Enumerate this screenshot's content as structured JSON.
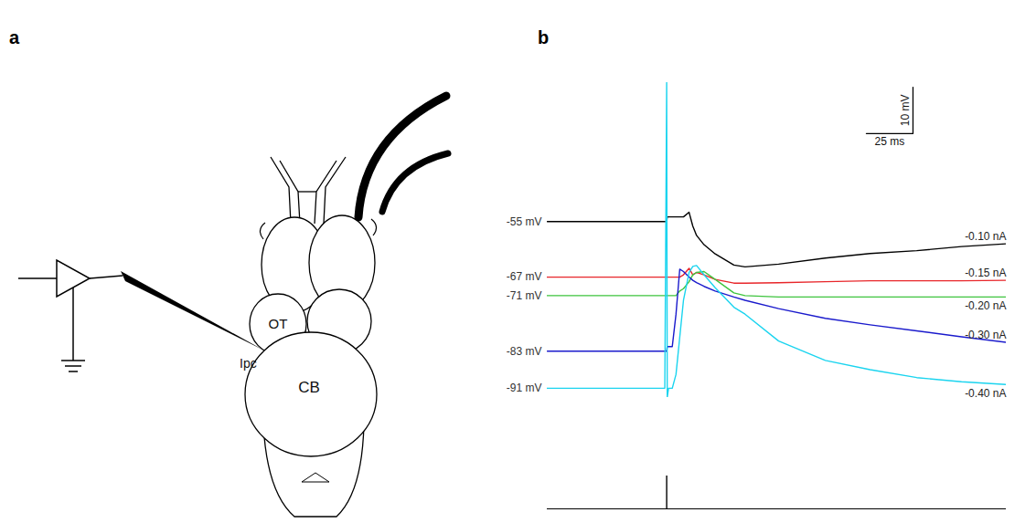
{
  "panel_a": {
    "panel_label": "a",
    "labels": {
      "optic_tectum": "OT",
      "nucleus": "Ipc",
      "cerebellum": "CB"
    }
  },
  "chart_data": {
    "type": "line",
    "panel_label": "b",
    "tick_labels": false,
    "x": [
      -64,
      -1,
      0,
      0.3,
      1,
      3,
      5,
      7,
      9,
      12,
      14,
      16,
      20,
      26,
      36,
      42,
      60,
      85,
      109,
      134,
      158,
      182
    ],
    "series": [
      {
        "name": "-0.10 nA",
        "potential_label": "-55 mV",
        "color": "#000000",
        "values": [
          -55,
          -55,
          -55,
          -54,
          -54,
          -54,
          -54,
          -54,
          -54,
          -53,
          -56,
          -58,
          -60,
          -62,
          -64.4,
          -64.8,
          -64.2,
          -62.9,
          -61.9,
          -61.3,
          -60.4,
          -59.8
        ]
      },
      {
        "name": "-0.15 nA",
        "potential_label": "-67 mV",
        "color": "#e8262a",
        "values": [
          -67,
          -67,
          -67,
          -67,
          -67,
          -67,
          -67,
          -67,
          -66.5,
          -65.1,
          -66.5,
          -66,
          -66.5,
          -67.5,
          -68.3,
          -68.3,
          -68.2,
          -68,
          -67.8,
          -67.8,
          -67.8,
          -67.7
        ]
      },
      {
        "name": "-0.20 nA",
        "potential_label": "-71 mV",
        "color": "#3ec43e",
        "values": [
          -71,
          -71,
          -71,
          -71,
          -71,
          -71,
          -71,
          -70,
          -69.5,
          -68,
          -66.5,
          -66,
          -65.8,
          -67.5,
          -70.4,
          -71,
          -71.3,
          -71.3,
          -71.3,
          -71.3,
          -71.3,
          -71.3
        ]
      },
      {
        "name": "-0.30 nA",
        "potential_label": "-83 mV",
        "color": "#1a1acc",
        "values": [
          -83,
          -83,
          -83,
          -82,
          -82,
          -82,
          -75,
          -65.3,
          -65.8,
          -67,
          -67.7,
          -68.2,
          -69,
          -70,
          -71.3,
          -72,
          -73.8,
          -75.9,
          -77.3,
          -78.6,
          -79.9,
          -81.1
        ]
      },
      {
        "name": "-0.40 nA",
        "potential_label": "-91 mV",
        "color": "#1ad4ef",
        "values": [
          -91,
          -91,
          -25,
          -93,
          -91,
          -91,
          -88,
          -80,
          -72,
          -66,
          -64.7,
          -64.5,
          -66.5,
          -69.3,
          -73.5,
          -75,
          -80.8,
          -85,
          -87,
          -88.7,
          -89.6,
          -90.2
        ]
      }
    ],
    "scale_bar": {
      "voltage": 10,
      "voltage_label": "10 mV",
      "time": 25,
      "time_label": "25 ms"
    },
    "stimulus": {
      "time": 0
    }
  }
}
